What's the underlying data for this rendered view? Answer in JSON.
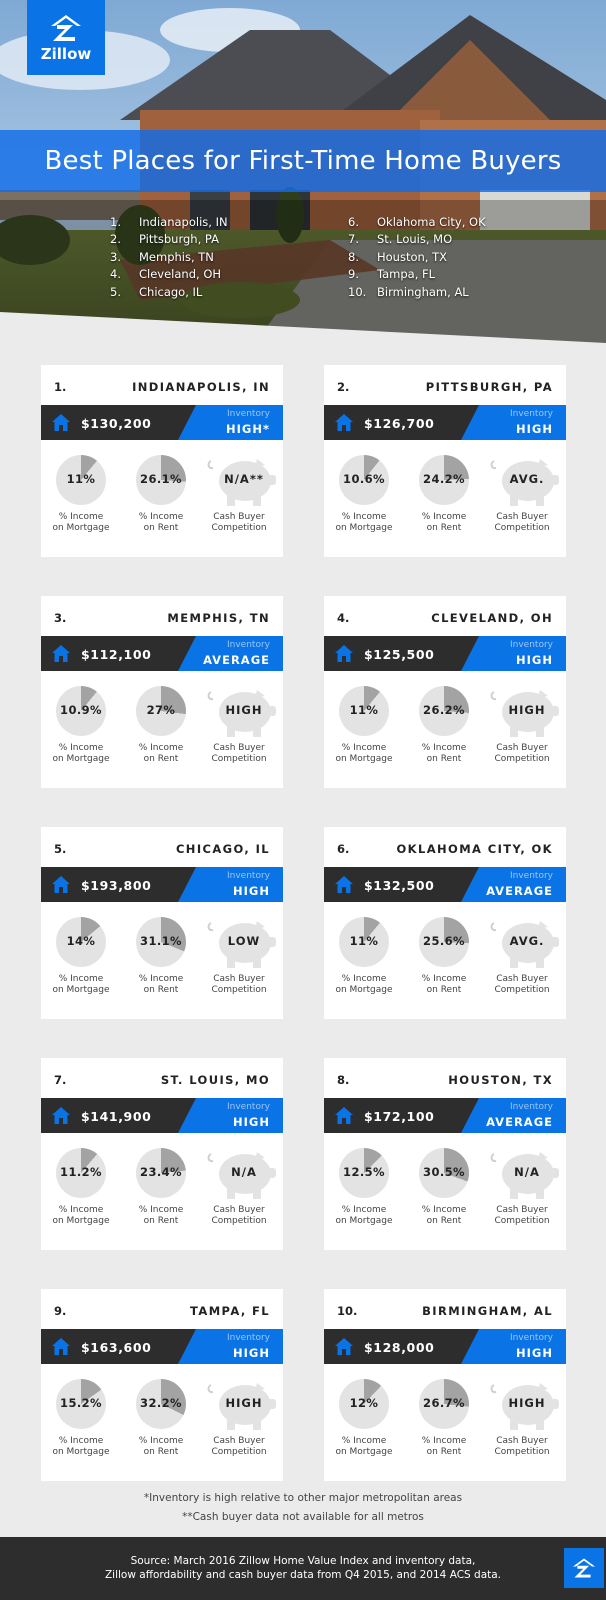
{
  "brand": {
    "logo_text": "Zillow"
  },
  "hero": {
    "title": "Best Places for First-Time Home Buyers",
    "ranking": [
      {
        "num": "1.",
        "city": "Indianapolis, IN"
      },
      {
        "num": "2.",
        "city": "Pittsburgh, PA"
      },
      {
        "num": "3.",
        "city": "Memphis, TN"
      },
      {
        "num": "4.",
        "city": "Cleveland, OH"
      },
      {
        "num": "5.",
        "city": "Chicago, IL"
      },
      {
        "num": "6.",
        "city": "Oklahoma City, OK"
      },
      {
        "num": "7.",
        "city": "St. Louis, MO"
      },
      {
        "num": "8.",
        "city": "Houston, TX"
      },
      {
        "num": "9.",
        "city": "Tampa, FL"
      },
      {
        "num": "10.",
        "city": "Birmingham, AL"
      }
    ]
  },
  "labels": {
    "inventory": "Inventory",
    "mortgage_line1": "% Income",
    "mortgage_line2": "on Mortgage",
    "rent_line1": "% Income",
    "rent_line2": "on Rent",
    "cash_line1": "Cash Buyer",
    "cash_line2": "Competition"
  },
  "colors": {
    "brand_blue": "#0a73e6",
    "dark": "#2d2d2d",
    "pie_light": "#e3e3e3",
    "pie_dark": "#a3a3a3"
  },
  "cards": [
    {
      "rank": "1.",
      "city": "INDIANAPOLIS, IN",
      "price": "$130,200",
      "inventory": "HIGH*",
      "mortgage": "11%",
      "mortgage_pct": 11,
      "rent": "26.1%",
      "rent_pct": 26.1,
      "cash": "N/A**"
    },
    {
      "rank": "2.",
      "city": "PITTSBURGH, PA",
      "price": "$126,700",
      "inventory": "HIGH",
      "mortgage": "10.6%",
      "mortgage_pct": 10.6,
      "rent": "24.2%",
      "rent_pct": 24.2,
      "cash": "AVG."
    },
    {
      "rank": "3.",
      "city": "MEMPHIS, TN",
      "price": "$112,100",
      "inventory": "AVERAGE",
      "mortgage": "10.9%",
      "mortgage_pct": 10.9,
      "rent": "27%",
      "rent_pct": 27,
      "cash": "HIGH"
    },
    {
      "rank": "4.",
      "city": "CLEVELAND, OH",
      "price": "$125,500",
      "inventory": "HIGH",
      "mortgage": "11%",
      "mortgage_pct": 11,
      "rent": "26.2%",
      "rent_pct": 26.2,
      "cash": "HIGH"
    },
    {
      "rank": "5.",
      "city": "CHICAGO, IL",
      "price": "$193,800",
      "inventory": "HIGH",
      "mortgage": "14%",
      "mortgage_pct": 14,
      "rent": "31.1%",
      "rent_pct": 31.1,
      "cash": "LOW"
    },
    {
      "rank": "6.",
      "city": "OKLAHOMA CITY, OK",
      "price": "$132,500",
      "inventory": "AVERAGE",
      "mortgage": "11%",
      "mortgage_pct": 11,
      "rent": "25.6%",
      "rent_pct": 25.6,
      "cash": "AVG."
    },
    {
      "rank": "7.",
      "city": "ST. LOUIS, MO",
      "price": "$141,900",
      "inventory": "HIGH",
      "mortgage": "11.2%",
      "mortgage_pct": 11.2,
      "rent": "23.4%",
      "rent_pct": 23.4,
      "cash": "N/A"
    },
    {
      "rank": "8.",
      "city": "HOUSTON, TX",
      "price": "$172,100",
      "inventory": "AVERAGE",
      "mortgage": "12.5%",
      "mortgage_pct": 12.5,
      "rent": "30.5%",
      "rent_pct": 30.5,
      "cash": "N/A"
    },
    {
      "rank": "9.",
      "city": "TAMPA, FL",
      "price": "$163,600",
      "inventory": "HIGH",
      "mortgage": "15.2%",
      "mortgage_pct": 15.2,
      "rent": "32.2%",
      "rent_pct": 32.2,
      "cash": "HIGH"
    },
    {
      "rank": "10.",
      "city": "BIRMINGHAM, AL",
      "price": "$128,000",
      "inventory": "HIGH",
      "mortgage": "12%",
      "mortgage_pct": 12,
      "rent": "26.7%",
      "rent_pct": 26.7,
      "cash": "HIGH"
    }
  ],
  "footnotes": [
    "*Inventory is high relative to other major metropolitan areas",
    "**Cash buyer data not available for all metros"
  ],
  "footer": {
    "source_line1": "Source: March 2016 Zillow Home Value Index and inventory data,",
    "source_line2": "Zillow affordability and cash buyer data from Q4 2015, and 2014 ACS data."
  }
}
